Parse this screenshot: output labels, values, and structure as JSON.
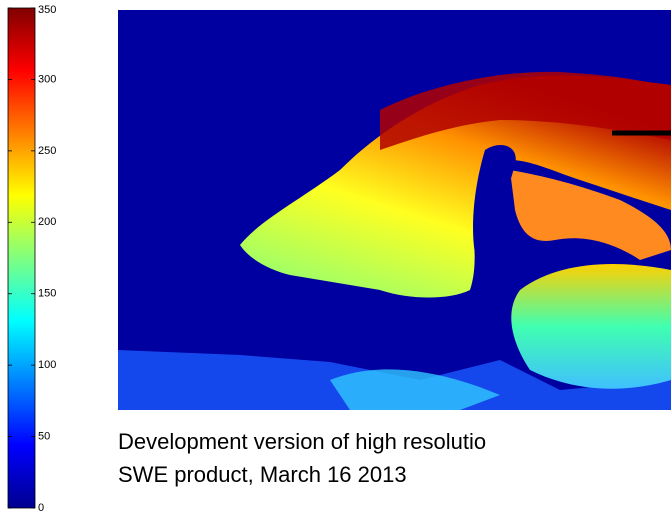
{
  "colorbar": {
    "ticks": [
      0,
      50,
      100,
      150,
      200,
      250,
      300,
      350
    ]
  },
  "caption": [
    "Development version of high resolutio",
    "SWE  product, March 16 2013"
  ]
}
